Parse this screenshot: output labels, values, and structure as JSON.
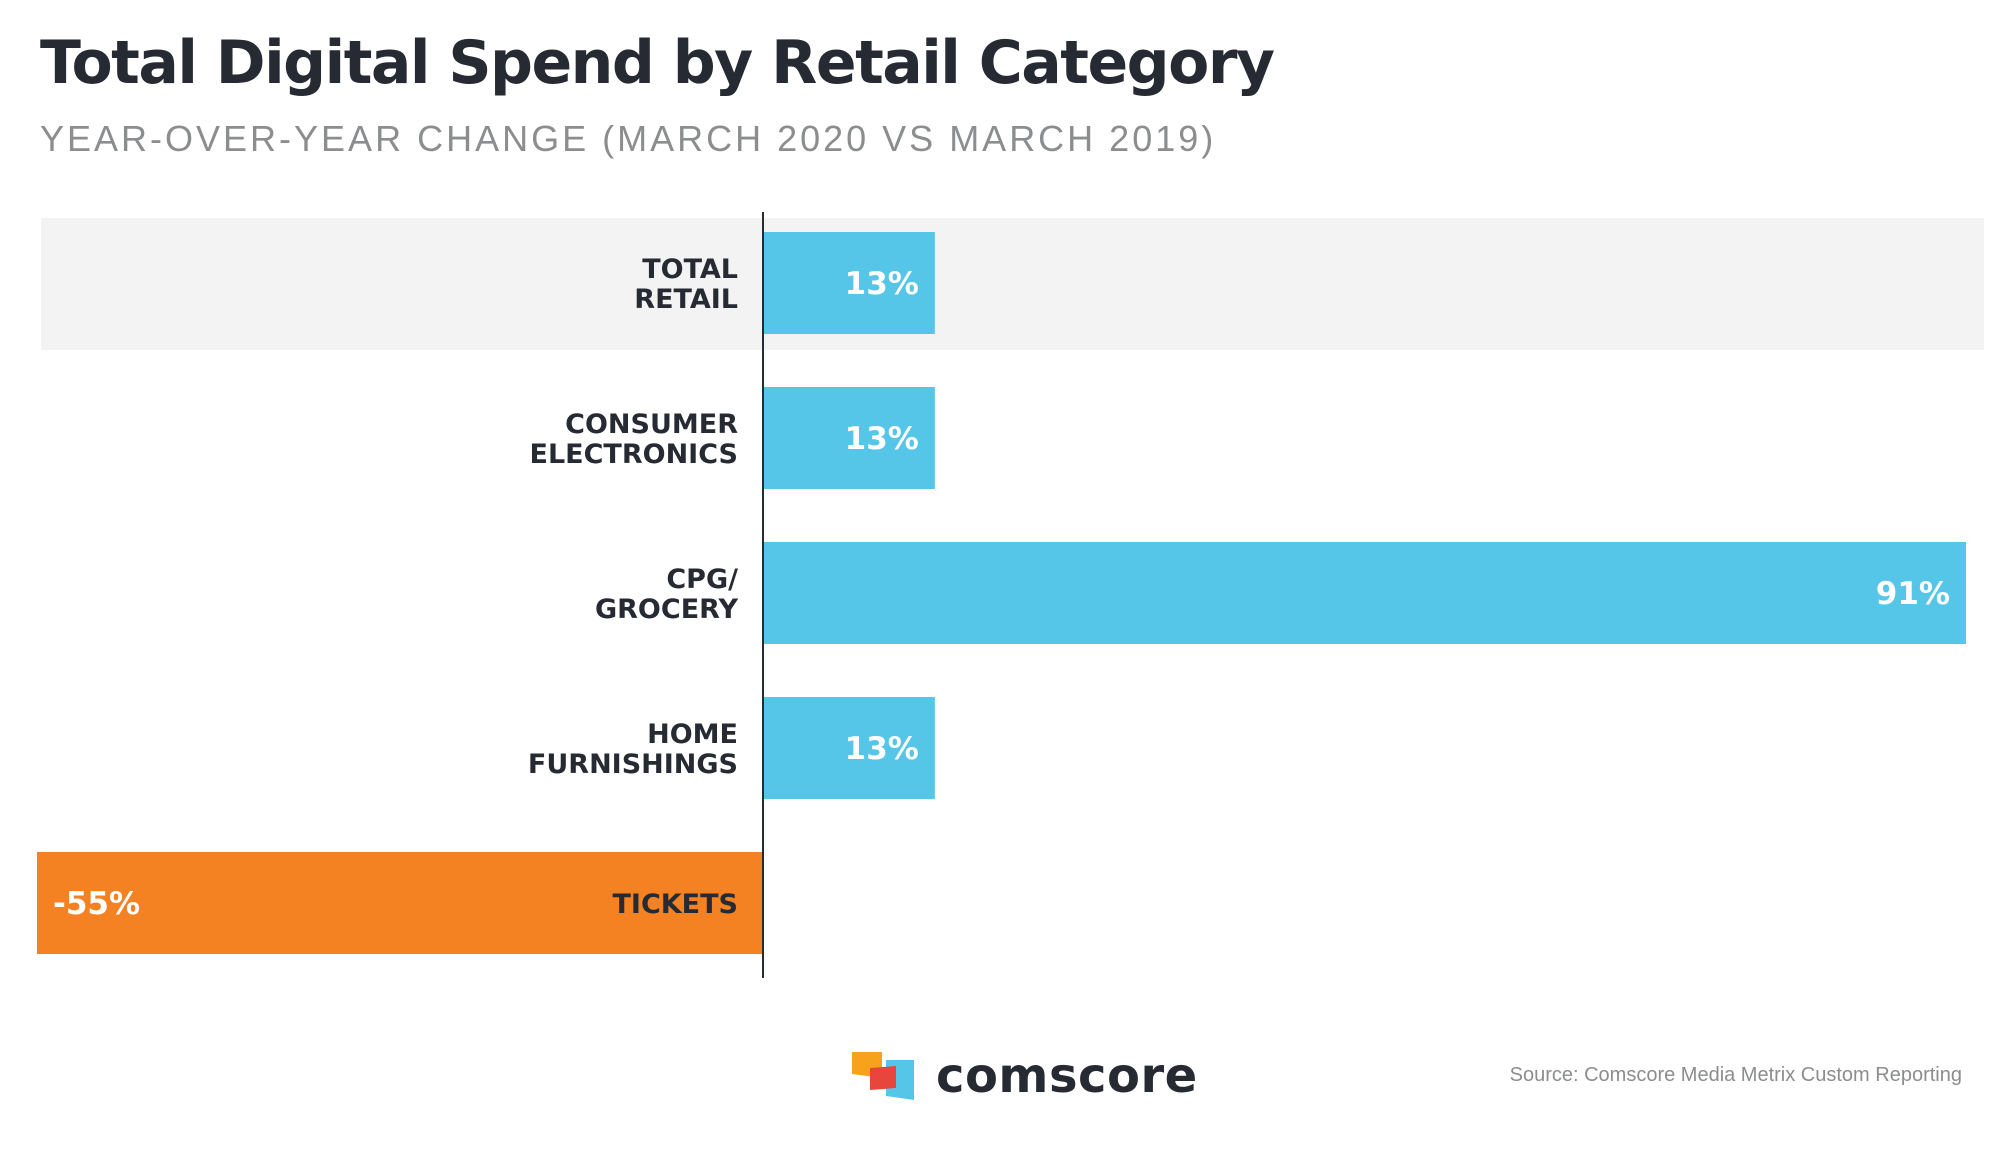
{
  "colors": {
    "positive": "#55c6e8",
    "negative": "#f58222",
    "highlight_row": "#f2f3f2",
    "axis": "#262a33"
  },
  "chart_data": {
    "type": "bar",
    "orientation": "horizontal",
    "title": "Total Digital Spend by Retail Category",
    "subtitle": "YEAR-OVER-YEAR CHANGE (MARCH 2020 VS MARCH 2019)",
    "categories": [
      [
        "TOTAL",
        "RETAIL"
      ],
      [
        "CONSUMER",
        "ELECTRONICS"
      ],
      [
        "CPG/",
        "GROCERY"
      ],
      [
        "HOME",
        "FURNISHINGS"
      ],
      [
        "TICKETS"
      ]
    ],
    "values": [
      13,
      13,
      91,
      13,
      -55
    ],
    "value_labels": [
      "13%",
      "13%",
      "91%",
      "13%",
      "-55%"
    ],
    "highlighted_category": "TOTAL RETAIL",
    "xlabel": "",
    "ylabel": "",
    "xlim": [
      -55,
      91
    ],
    "unit": "%",
    "grid": false,
    "legend": "none"
  },
  "brand": {
    "name": "comscore",
    "logo_icon": "comscore-logo-icon"
  },
  "source": "Source: Comscore Media Metrix Custom Reporting"
}
